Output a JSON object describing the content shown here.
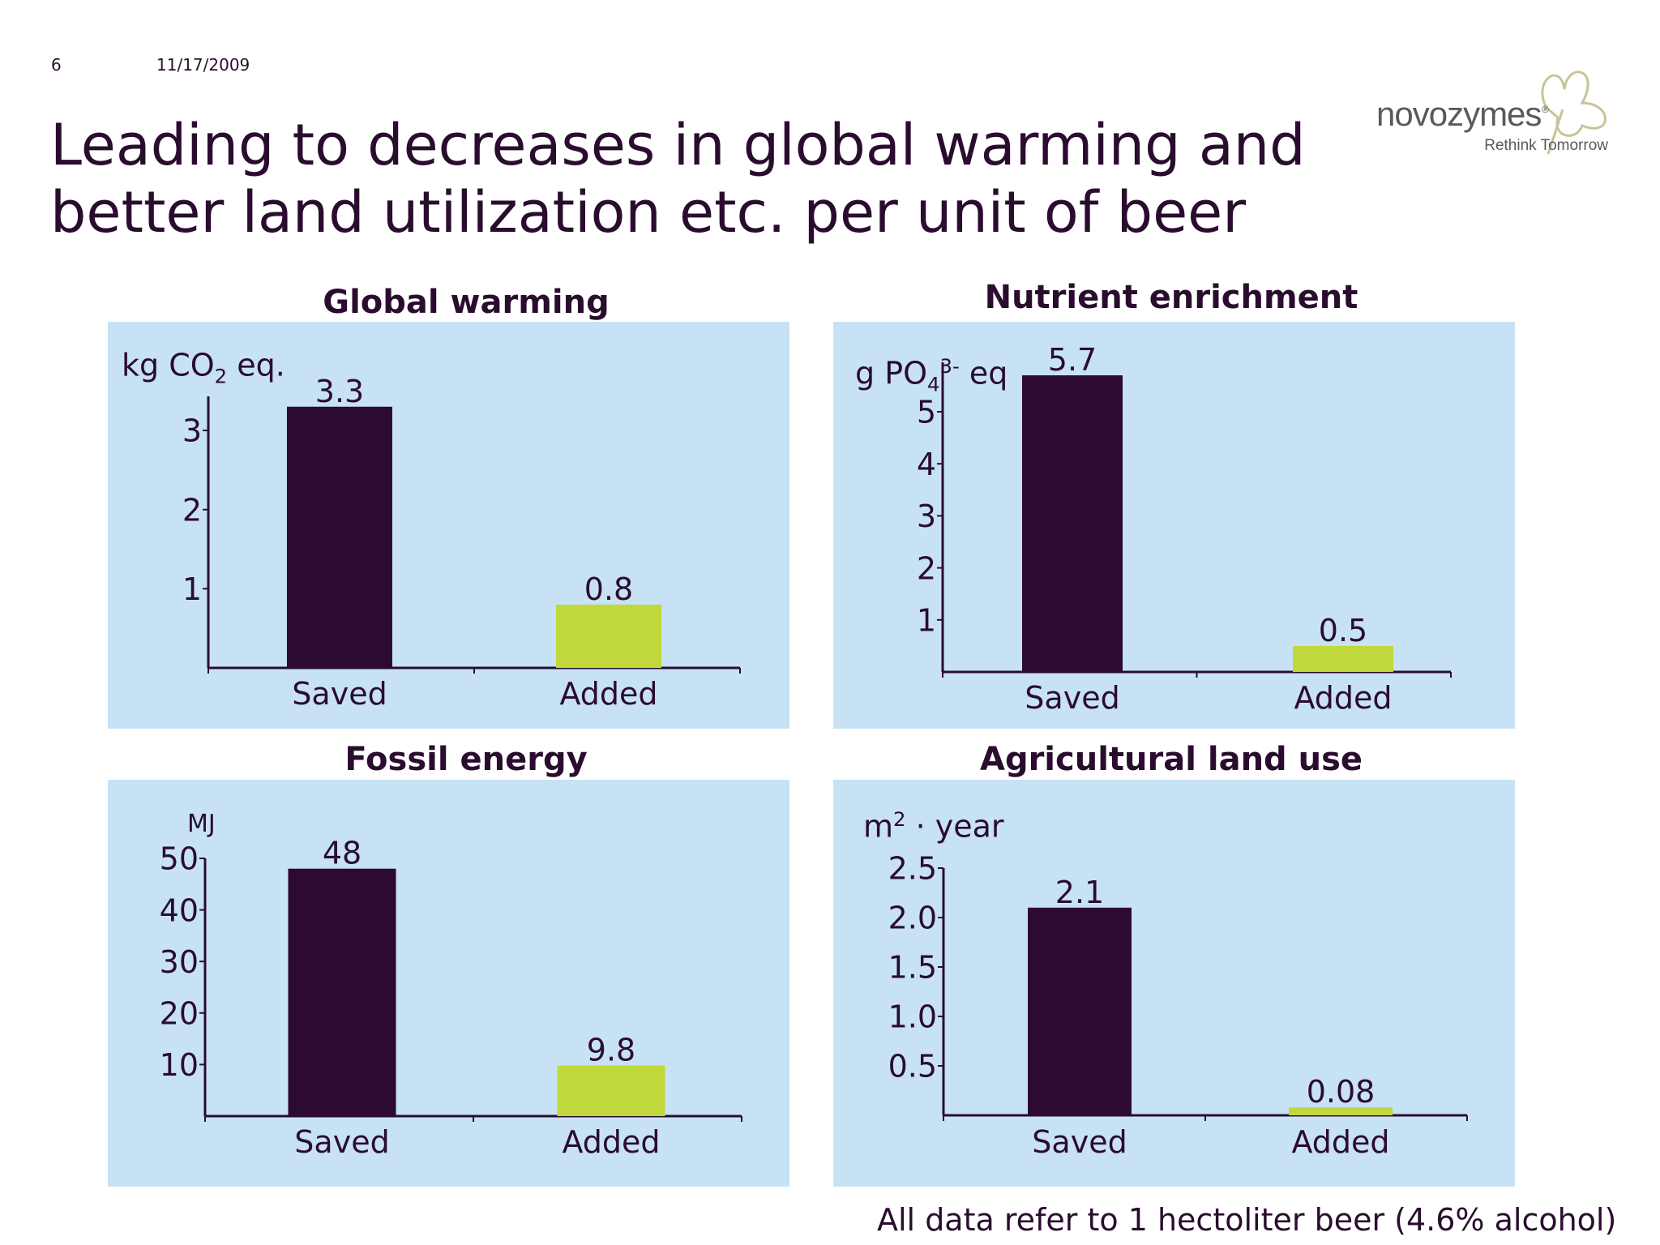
{
  "slide": {
    "number": "6",
    "date": "11/17/2009",
    "title": "Leading to decreases in global warming and better land utilization etc. per unit of beer",
    "footnote": "All data refer to 1 hectoliter beer (4.6% alcohol)"
  },
  "logo": {
    "brand": "novozymes",
    "mark": "®",
    "tagline": "Rethink Tomorrow",
    "icon": "clover-icon"
  },
  "colors": {
    "text": "#2a0d2e",
    "panel": "#c8e2f5",
    "saved": "#2d0a2f",
    "added": "#c1d83c"
  },
  "chart_data": [
    {
      "type": "bar",
      "title": "Global warming",
      "unit": {
        "main": "kg CO",
        "sub": "2",
        "sup": "",
        "after": " eq."
      },
      "categories": [
        "Saved",
        "Added"
      ],
      "values": [
        3.3,
        0.8
      ],
      "value_labels": [
        "3.3",
        "0.8"
      ],
      "yticks": [
        1,
        2,
        3
      ],
      "ytick_labels": [
        "1",
        "2",
        "3"
      ],
      "ylim": [
        0,
        3.4
      ]
    },
    {
      "type": "bar",
      "title": "Nutrient enrichment",
      "unit": {
        "main": "g PO",
        "sub": "4",
        "sup": "3-",
        "after": " eq"
      },
      "categories": [
        "Saved",
        "Added"
      ],
      "values": [
        5.7,
        0.5
      ],
      "value_labels": [
        "5.7",
        "0.5"
      ],
      "yticks": [
        1,
        2,
        3,
        4,
        5
      ],
      "ytick_labels": [
        "1",
        "2",
        "3",
        "4",
        "5"
      ],
      "ylim": [
        0,
        5
      ]
    },
    {
      "type": "bar",
      "title": "Fossil energy",
      "unit": {
        "main": "MJ",
        "sub": "",
        "sup": "",
        "after": ""
      },
      "categories": [
        "Saved",
        "Added"
      ],
      "values": [
        48,
        9.8
      ],
      "value_labels": [
        "48",
        "9.8"
      ],
      "yticks": [
        10,
        20,
        30,
        40,
        50
      ],
      "ytick_labels": [
        "10",
        "20",
        "30",
        "40",
        "50"
      ],
      "ylim": [
        0,
        50
      ]
    },
    {
      "type": "bar",
      "title": "Agricultural land use",
      "unit": {
        "main": "m",
        "sub": "",
        "sup": "2",
        "after": " · year"
      },
      "categories": [
        "Saved",
        "Added"
      ],
      "values": [
        2.1,
        0.08
      ],
      "value_labels": [
        "2.1",
        "0.08"
      ],
      "yticks": [
        0.5,
        1.0,
        1.5,
        2.0,
        2.5
      ],
      "ytick_labels": [
        "0.5",
        "1.0",
        "1.5",
        "2.0",
        "2.5"
      ],
      "ylim": [
        0,
        2.5
      ]
    }
  ]
}
